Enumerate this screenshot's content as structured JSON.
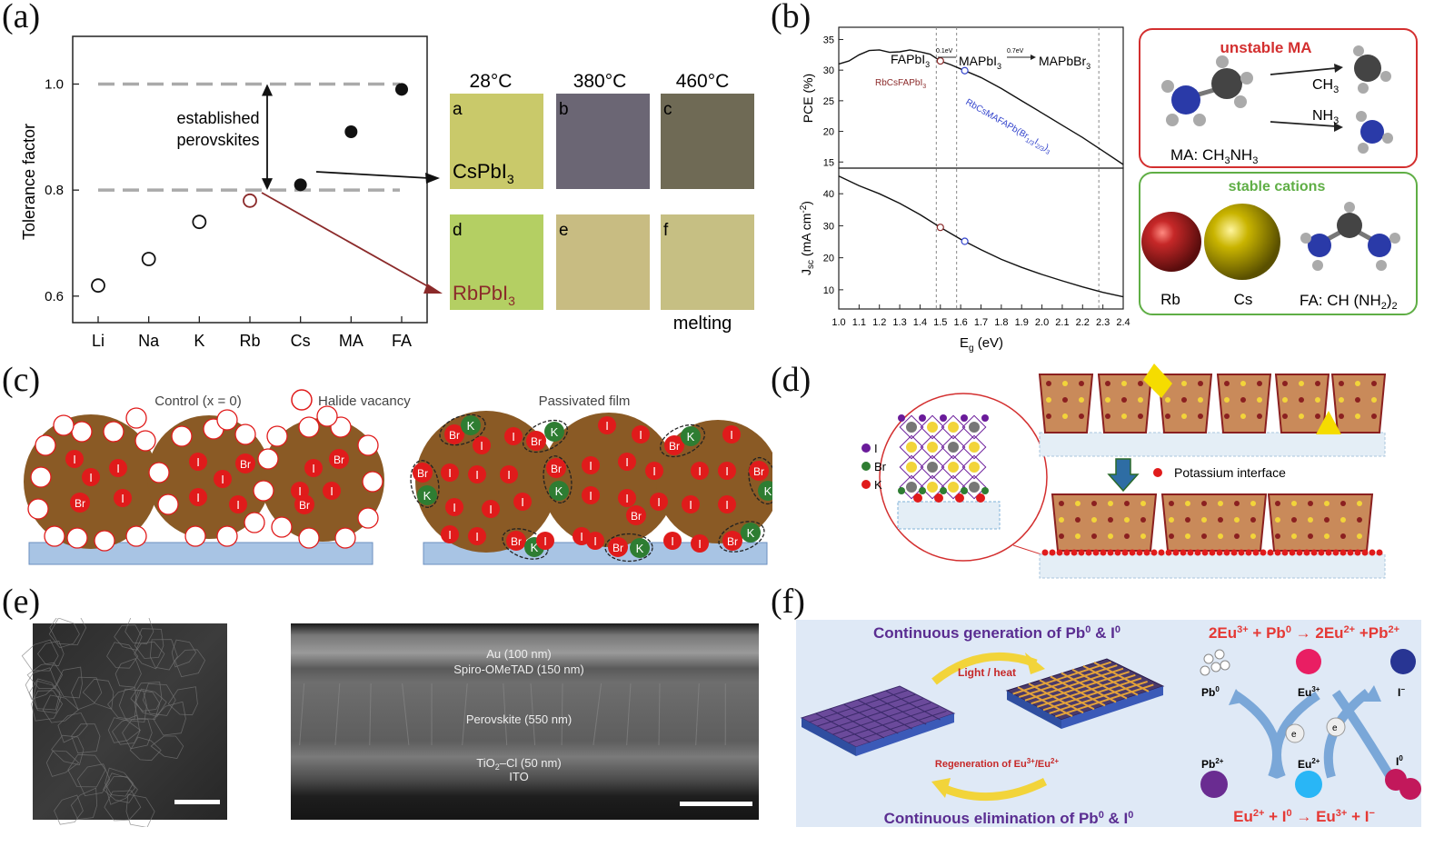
{
  "panels": {
    "a": {
      "label": "(a)",
      "chart_data": {
        "type": "scatter",
        "ylabel": "Tolerance factor",
        "categories": [
          "Li",
          "Na",
          "K",
          "Rb",
          "Cs",
          "MA",
          "FA"
        ],
        "values": [
          0.62,
          0.67,
          0.74,
          0.78,
          0.81,
          0.91,
          0.99
        ],
        "marker": [
          "open",
          "open",
          "open",
          "open-red",
          "filled",
          "filled",
          "filled"
        ],
        "yticks": [
          "0.6",
          "0.8",
          "1.0"
        ],
        "ytick_values": [
          0.6,
          0.8,
          1.0
        ],
        "ylim": [
          0.55,
          1.09
        ],
        "band": [
          0.8,
          1.0
        ],
        "band_label_1": "established",
        "band_label_2": "perovskites"
      },
      "temps": [
        "28°C",
        "380°C",
        "460°C"
      ],
      "tiles": [
        "a",
        "b",
        "c",
        "d",
        "e",
        "f"
      ],
      "cs_label": "CsPbI",
      "cs_sub": "3",
      "rb_label": "RbPbI",
      "rb_sub": "3",
      "melting": "melting",
      "colors": {
        "tile_a": "#c9c96a",
        "tile_b": "#6b6674",
        "tile_c": "#6f6a55",
        "tile_d": "#b4cf63",
        "tile_e": "#c8bc82",
        "tile_f": "#c6bf83",
        "rb": "#8b2a2a"
      }
    },
    "b": {
      "label": "(b)",
      "chart_data": {
        "type": "line",
        "xlabel": "E",
        "xlabel_sub": "g",
        "xlabel_unit": " (eV)",
        "xticks": [
          "1.0",
          "1.1",
          "1.2",
          "1.3",
          "1.4",
          "1.5",
          "1.6",
          "1.7",
          "1.8",
          "1.9",
          "2.0",
          "2.1",
          "2.2",
          "2.3",
          "2.4"
        ],
        "xlim": [
          1.0,
          2.4
        ],
        "top": {
          "ylabel": "PCE (%)",
          "yticks": [
            "35",
            "30",
            "25",
            "20",
            "15"
          ],
          "ylim": [
            14,
            37
          ],
          "x": [
            1.0,
            1.05,
            1.1,
            1.15,
            1.2,
            1.25,
            1.3,
            1.35,
            1.4,
            1.45,
            1.5,
            1.55,
            1.6,
            1.7,
            1.8,
            1.9,
            2.0,
            2.1,
            2.2,
            2.3,
            2.4
          ],
          "y": [
            31,
            31.5,
            32.5,
            33.2,
            33.3,
            32.9,
            33.0,
            33.3,
            33.0,
            32.6,
            31.5,
            30.9,
            30.2,
            28.8,
            27.0,
            25.0,
            23.0,
            21.0,
            19.0,
            16.8,
            14.6
          ]
        },
        "bottom": {
          "ylabel": "J",
          "ylabel_sub": "sc",
          "ylabel_unit": " (mA cm",
          "ylabel_sup": "-2",
          "ylabel_end": ")",
          "yticks": [
            "40",
            "30",
            "20",
            "10"
          ],
          "ylim": [
            4,
            48
          ],
          "x": [
            1.0,
            1.1,
            1.2,
            1.3,
            1.4,
            1.5,
            1.6,
            1.7,
            1.8,
            1.9,
            2.0,
            2.1,
            2.2,
            2.3,
            2.4
          ],
          "y": [
            45.5,
            42.5,
            40.0,
            37.0,
            33.5,
            29.5,
            25.8,
            22.5,
            19.5,
            17.0,
            14.8,
            12.8,
            10.9,
            9.2,
            7.8
          ]
        },
        "markers_x": [
          1.5,
          1.62
        ],
        "vlines": [
          1.48,
          1.58,
          2.28
        ],
        "top_labels": {
          "fapbi3": "FAPbI",
          "mapbi3": "MAPbI",
          "mapbbr3": "MAPbBr",
          "sub3": "3",
          "gap1": "0.1eV",
          "gap2": "0.7eV"
        },
        "rbcs_fa": "RbCsFAPbI",
        "rbcs_fa_sub": "3",
        "rbcs_ma": "RbCsMAFAPb(Br",
        "rbcs_ma_sub1": "1/3",
        "rbcs_ma_mid": "I",
        "rbcs_ma_sub2": "2/3",
        "rbcs_ma_end": ")",
        "rbcs_ma_sub3": "3"
      },
      "unstable_title": "unstable MA",
      "ma_label": "MA: CH",
      "ma_sub1": "3",
      "ma_mid": "NH",
      "ma_sub2": "3",
      "ch3": "CH",
      "ch3_sub": "3",
      "nh3": "NH",
      "nh3_sub": "3",
      "stable_title": "stable cations",
      "rb": "Rb",
      "cs": "Cs",
      "fa_label": "FA: CH (NH",
      "fa_sub": "2",
      "fa_end": ")",
      "fa_sub2": "2",
      "colors": {
        "red_box": "#d32f2f",
        "green_box": "#5fae45",
        "rb_ball": "#b71c1c",
        "cs_ball": "#c9b400"
      }
    },
    "c": {
      "label": "(c)",
      "control_title": "Control (x = 0)",
      "vacancy_legend": "Halide vacancy",
      "passivated_title": "Passivated film",
      "ion_I": "I",
      "ion_Br": "Br",
      "ion_K": "K",
      "colors": {
        "grain": "#8a5a25",
        "ion_red": "#e01b1b",
        "ion_green": "#2e7d32",
        "substrate": "#a8c4e4"
      }
    },
    "d": {
      "label": "(d)",
      "legend_I": "I",
      "legend_Br": "Br",
      "legend_K": "K",
      "interface": "Potassium interface",
      "colors": {
        "block": "#8b2020",
        "fill": "#c98a5a",
        "arrow": "#2e6da4"
      }
    },
    "e": {
      "label": "(e)",
      "layers": [
        "Au (100 nm)",
        "Spiro-OMeTAD (150 nm)",
        "Perovskite (550 nm)",
        "TiO",
        "ITO"
      ],
      "tio2_sub": "2",
      "tio2_end": "–Cl (50 nm)"
    },
    "f": {
      "label": "(f)",
      "top_text": "Continuous generation of Pb",
      "top_sup1": "0",
      "top_and": " & I",
      "top_sup2": "0",
      "bottom_text": "Continuous elimination of Pb",
      "bottom_sup1": "0",
      "bottom_and": " & I",
      "bottom_sup2": "0",
      "light": "Light / heat",
      "regen": "Regeneration of Eu",
      "regen_sup1": "3+",
      "regen_slash": "/Eu",
      "regen_sup2": "2+",
      "eq1_a": "2Eu",
      "eq1_s1": "3+",
      "eq1_b": " + Pb",
      "eq1_s2": "0",
      "eq1_c": " → 2Eu",
      "eq1_s3": "2+",
      "eq1_d": " +Pb",
      "eq1_s4": "2+",
      "eq2_a": "Eu",
      "eq2_s1": "2+",
      "eq2_b": " + I",
      "eq2_s2": "0",
      "eq2_c": " → Eu",
      "eq2_s3": "3+",
      "eq2_d": " + I",
      "eq2_s4": "−",
      "sp_pb0": "Pb",
      "sp_pb0_s": "0",
      "sp_eu3": "Eu",
      "sp_eu3_s": "3+",
      "sp_i": "I",
      "sp_i_s": "−",
      "sp_pb2": "Pb",
      "sp_pb2_s": "2+",
      "sp_eu2": "Eu",
      "sp_eu2_s": "2+",
      "sp_i0": "I",
      "sp_i0_s": "0",
      "electron": "e",
      "colors": {
        "bg": "#dfe9f6",
        "purple": "#5a2d91",
        "red": "#e53935",
        "film": "#6b4a9b"
      }
    }
  }
}
